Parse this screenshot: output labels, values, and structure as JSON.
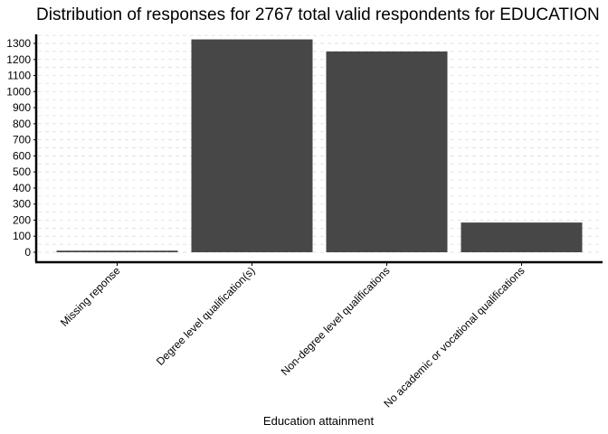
{
  "chart_data": {
    "type": "bar",
    "title": "Distribution of responses for 2767 total valid respondents for EDUCATION",
    "xlabel": "Education attainment",
    "ylabel": "",
    "categories": [
      "Missing reponse",
      "Degree level qualification(s)",
      "Non-degree level qualifications",
      "No academic or vocational qualifications"
    ],
    "values": [
      10,
      1325,
      1250,
      185
    ],
    "ylim": [
      0,
      1360
    ],
    "yticks": [
      0,
      100,
      200,
      300,
      400,
      500,
      600,
      700,
      800,
      900,
      1000,
      1100,
      1200,
      1300
    ],
    "grid": true,
    "legend": "none",
    "bar_color": "#474747"
  }
}
